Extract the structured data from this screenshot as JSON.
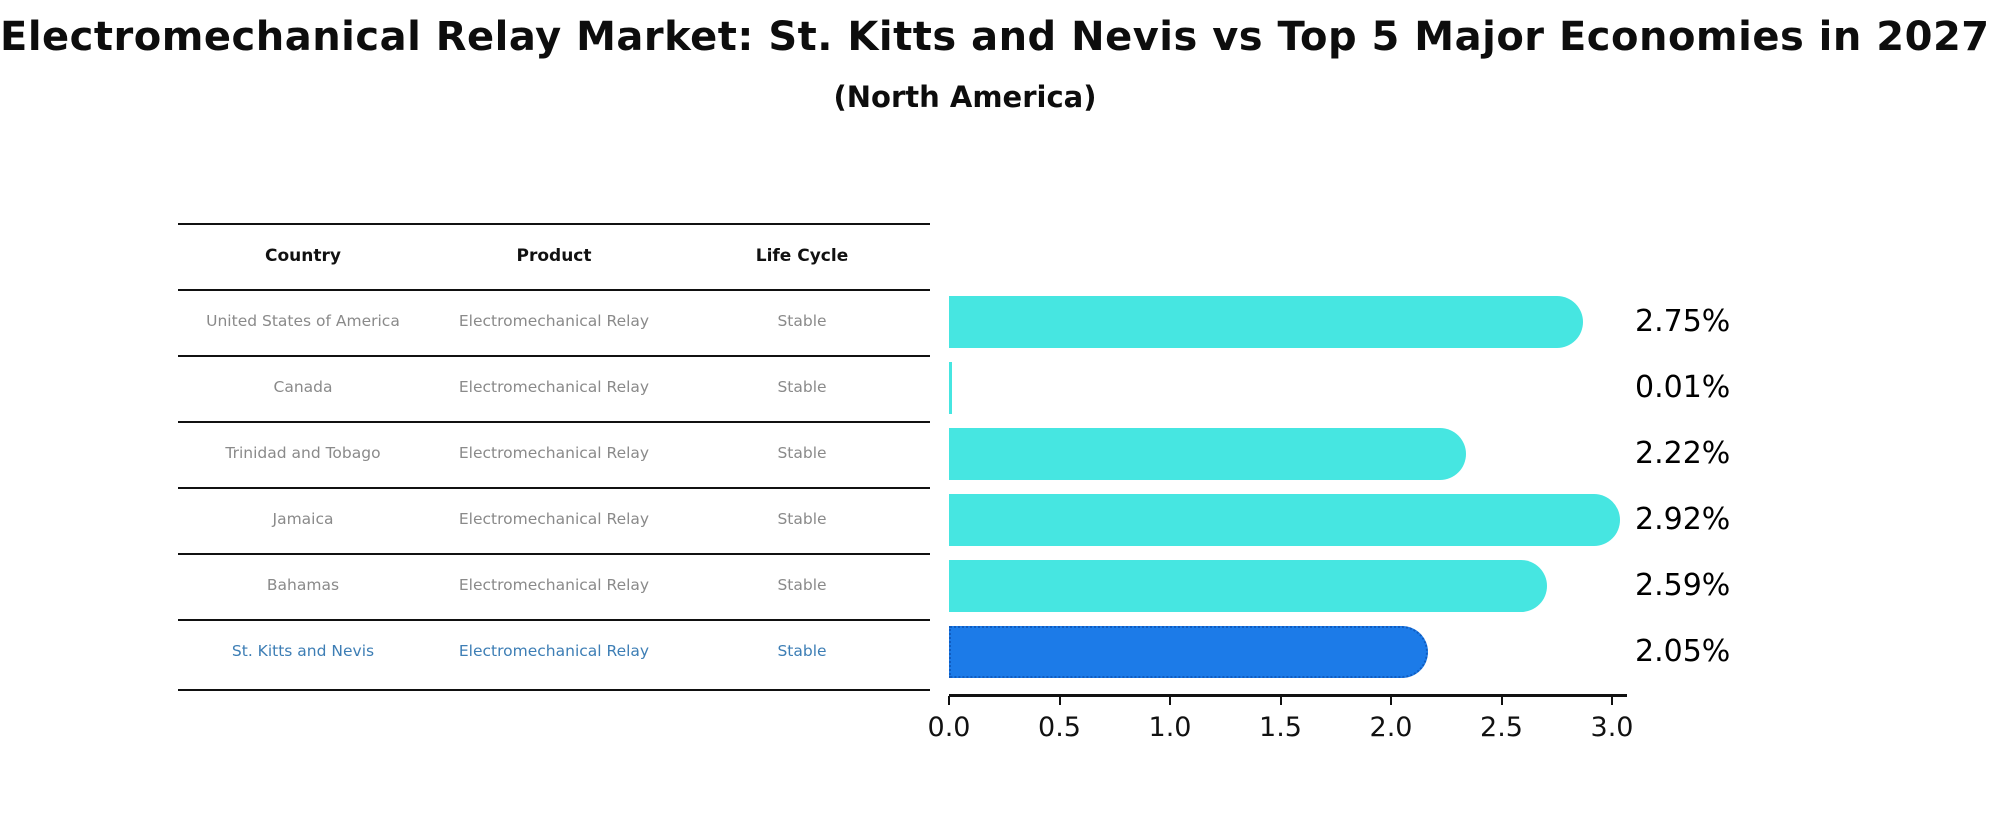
{
  "title": "Electromechanical Relay Market: St. Kitts and Nevis vs Top 5 Major Economies in 2027",
  "subtitle": "(North America)",
  "table": {
    "headers": [
      "Country",
      "Product",
      "Life Cycle"
    ],
    "rows": [
      {
        "country": "United States of America",
        "product": "Electromechanical Relay",
        "life_cycle": "Stable",
        "highlighted": false
      },
      {
        "country": "Canada",
        "product": "Electromechanical Relay",
        "life_cycle": "Stable",
        "highlighted": false
      },
      {
        "country": "Trinidad and Tobago",
        "product": "Electromechanical Relay",
        "life_cycle": "Stable",
        "highlighted": false
      },
      {
        "country": "Jamaica",
        "product": "Electromechanical Relay",
        "life_cycle": "Stable",
        "highlighted": false
      },
      {
        "country": "Bahamas",
        "product": "Electromechanical Relay",
        "life_cycle": "Stable",
        "highlighted": false
      },
      {
        "country": "St. Kitts and Nevis",
        "product": "Electromechanical Relay",
        "life_cycle": "Stable",
        "highlighted": true
      }
    ]
  },
  "chart_data": {
    "type": "bar",
    "orientation": "horizontal",
    "title": "Electromechanical Relay Market: St. Kitts and Nevis vs Top 5 Major Economies in 2027",
    "subtitle": "(North America)",
    "categories": [
      "United States of America",
      "Canada",
      "Trinidad and Tobago",
      "Jamaica",
      "Bahamas",
      "St. Kitts and Nevis"
    ],
    "values": [
      2.75,
      0.01,
      2.22,
      2.92,
      2.59,
      2.05
    ],
    "value_labels": [
      "2.75%",
      "0.01%",
      "2.22%",
      "2.92%",
      "2.59%",
      "2.05%"
    ],
    "xlim": [
      0,
      3.0
    ],
    "x_ticks": [
      "0.0",
      "0.5",
      "1.0",
      "1.5",
      "2.0",
      "2.5",
      "3.0"
    ],
    "grid": false,
    "legend": false,
    "highlight_index": 5
  },
  "colors": {
    "bar": "#46e6e1",
    "highlight_bar": "#1c7be8",
    "highlight_bar_border": "#0f5cc0",
    "row_text": "#8a8a8a",
    "highlight_row_text": "#3d7eb5",
    "text": "#111111"
  }
}
